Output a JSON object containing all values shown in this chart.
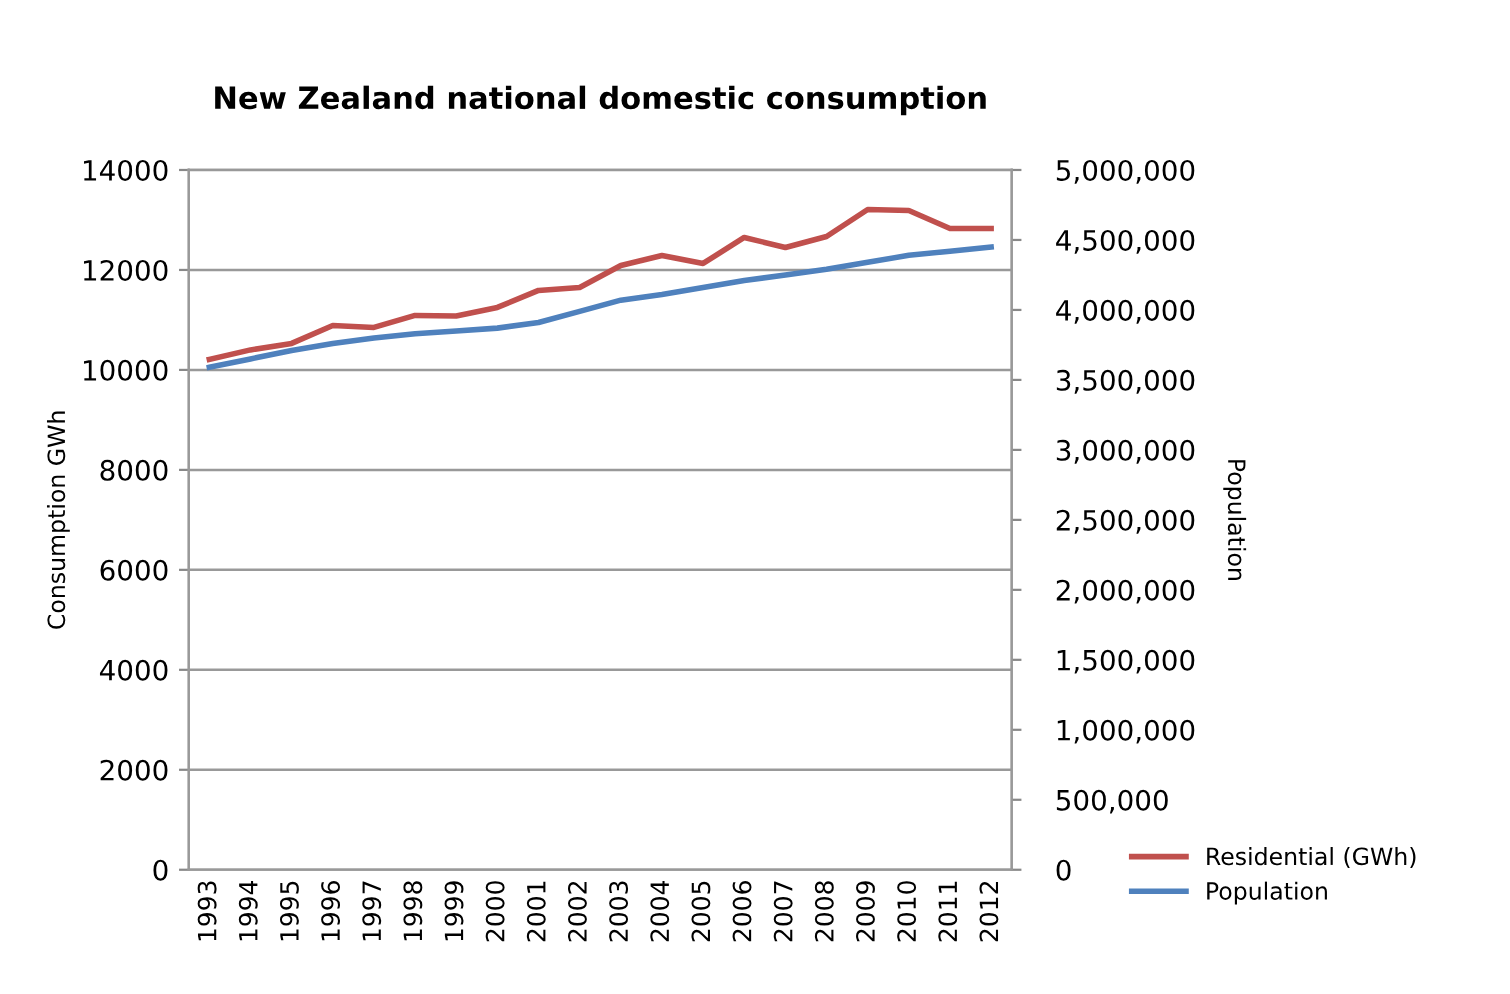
{
  "chart_data": {
    "type": "line",
    "title": "New Zealand national domestic consumption",
    "ylabel": "Consumption GWh",
    "y2label": "Population",
    "categories": [
      "1993",
      "1994",
      "1995",
      "1996",
      "1997",
      "1998",
      "1999",
      "2000",
      "2001",
      "2002",
      "2003",
      "2004",
      "2005",
      "2006",
      "2007",
      "2008",
      "2009",
      "2010",
      "2011",
      "2012"
    ],
    "series": [
      {
        "name": "Residential (GWh)",
        "color": "#c0504d",
        "values": [
          10210,
          10400,
          10530,
          10890,
          10850,
          11090,
          11080,
          11250,
          11590,
          11650,
          12090,
          12290,
          12130,
          12650,
          12450,
          12670,
          13210,
          13190,
          12830,
          12830
        ]
      },
      {
        "name": "Population",
        "color": "#4f81bd",
        "axis": "y2",
        "values": [
          3590000,
          3650000,
          3710000,
          3760000,
          3800000,
          3830000,
          3850000,
          3870000,
          3910000,
          3990000,
          4070000,
          4110000,
          4160000,
          4210000,
          4250000,
          4290000,
          4340000,
          4390000,
          4420000,
          4450000
        ]
      }
    ],
    "ylim": [
      0,
      14000
    ],
    "yticks": [
      0,
      2000,
      4000,
      6000,
      8000,
      10000,
      12000,
      14000
    ],
    "y2lim": [
      0,
      5000000
    ],
    "y2ticks": [
      0,
      {
        "value": 500000,
        "label": "500,000"
      },
      {
        "value": 1000000,
        "label": "1,000,000"
      },
      {
        "value": 1500000,
        "label": "1,500,000"
      },
      {
        "value": 2000000,
        "label": "2,000,000"
      },
      {
        "value": 2500000,
        "label": "2,500,000"
      },
      {
        "value": 3000000,
        "label": "3,000,000"
      },
      {
        "value": 3500000,
        "label": "3,500,000"
      },
      {
        "value": 4000000,
        "label": "4,000,000"
      },
      {
        "value": 4500000,
        "label": "4,500,000"
      },
      {
        "value": 5000000,
        "label": "5,000,000"
      }
    ],
    "grid": "y",
    "legend": "bottom right",
    "marker": "none",
    "line_style": "solid"
  }
}
